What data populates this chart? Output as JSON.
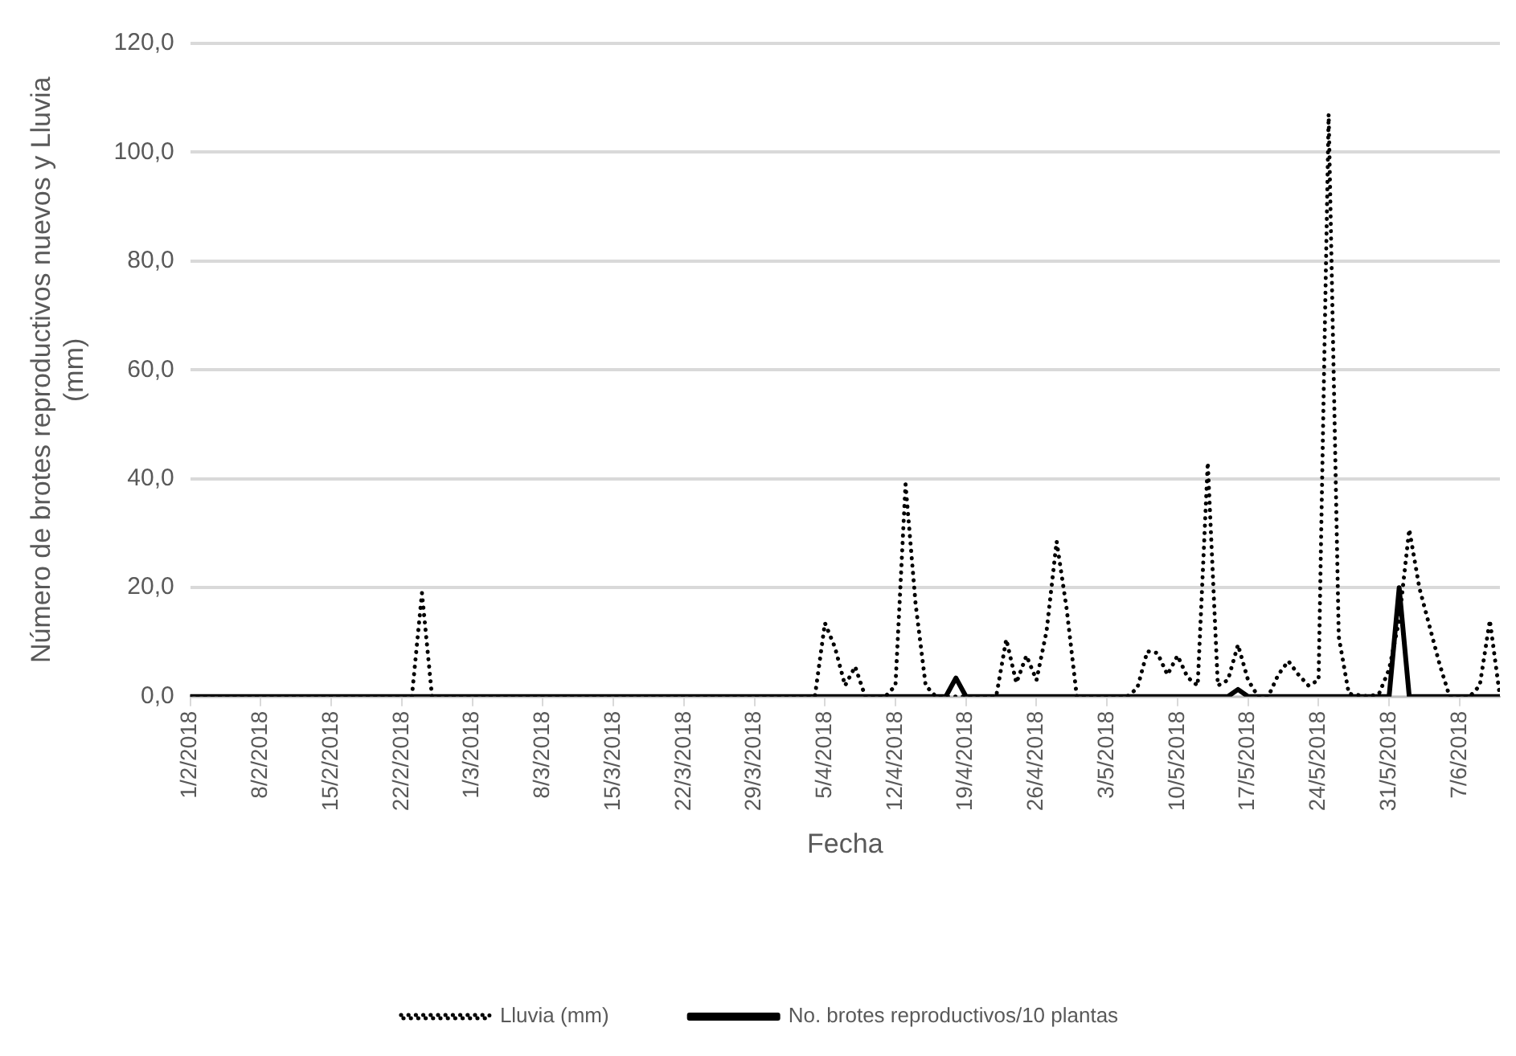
{
  "chart_data": {
    "type": "line",
    "xlabel": "Fecha",
    "ylabel": "Número de brotes reproductivos nuevos y Lluvia (mm)",
    "xlim": [
      "2018-02-01",
      "2018-06-11"
    ],
    "xticks": [
      {
        "value": "2018-02-01",
        "label": "1/2/2018"
      },
      {
        "value": "2018-02-08",
        "label": "8/2/2018"
      },
      {
        "value": "2018-02-15",
        "label": "15/2/2018"
      },
      {
        "value": "2018-02-22",
        "label": "22/2/2018"
      },
      {
        "value": "2018-03-01",
        "label": "1/3/2018"
      },
      {
        "value": "2018-03-08",
        "label": "8/3/2018"
      },
      {
        "value": "2018-03-15",
        "label": "15/3/2018"
      },
      {
        "value": "2018-03-22",
        "label": "22/3/2018"
      },
      {
        "value": "2018-03-29",
        "label": "29/3/2018"
      },
      {
        "value": "2018-04-05",
        "label": "5/4/2018"
      },
      {
        "value": "2018-04-12",
        "label": "12/4/2018"
      },
      {
        "value": "2018-04-19",
        "label": "19/4/2018"
      },
      {
        "value": "2018-04-26",
        "label": "26/4/2018"
      },
      {
        "value": "2018-05-03",
        "label": "3/5/2018"
      },
      {
        "value": "2018-05-10",
        "label": "10/5/2018"
      },
      {
        "value": "2018-05-17",
        "label": "17/5/2018"
      },
      {
        "value": "2018-05-24",
        "label": "24/5/2018"
      },
      {
        "value": "2018-05-31",
        "label": "31/5/2018"
      },
      {
        "value": "2018-06-07",
        "label": "7/6/2018"
      }
    ],
    "ylim": [
      0,
      120
    ],
    "yticks": [
      {
        "value": 0,
        "label": "0,0"
      },
      {
        "value": 20,
        "label": "20,0"
      },
      {
        "value": 40,
        "label": "40,0"
      },
      {
        "value": 60,
        "label": "60,0"
      },
      {
        "value": 80,
        "label": "80,0"
      },
      {
        "value": 100,
        "label": "100,0"
      },
      {
        "value": 120,
        "label": "120,0"
      }
    ],
    "grid": "y",
    "legend": "bottom",
    "marker": "none",
    "series": [
      {
        "name": "Lluvia (mm)",
        "color": "#000000",
        "line_style": "dotted",
        "x": [
          "2018-02-01",
          "2018-02-23",
          "2018-02-24",
          "2018-02-25",
          "2018-04-04",
          "2018-04-05",
          "2018-04-06",
          "2018-04-07",
          "2018-04-08",
          "2018-04-09",
          "2018-04-11",
          "2018-04-12",
          "2018-04-13",
          "2018-04-14",
          "2018-04-15",
          "2018-04-16",
          "2018-04-22",
          "2018-04-23",
          "2018-04-24",
          "2018-04-25",
          "2018-04-26",
          "2018-04-27",
          "2018-04-28",
          "2018-04-29",
          "2018-04-30",
          "2018-05-05",
          "2018-05-06",
          "2018-05-07",
          "2018-05-08",
          "2018-05-09",
          "2018-05-10",
          "2018-05-11",
          "2018-05-12",
          "2018-05-13",
          "2018-05-14",
          "2018-05-15",
          "2018-05-16",
          "2018-05-17",
          "2018-05-18",
          "2018-05-19",
          "2018-05-20",
          "2018-05-21",
          "2018-05-22",
          "2018-05-23",
          "2018-05-24",
          "2018-05-25",
          "2018-05-26",
          "2018-05-27",
          "2018-05-29",
          "2018-05-30",
          "2018-05-31",
          "2018-06-01",
          "2018-06-02",
          "2018-06-03",
          "2018-06-04",
          "2018-06-05",
          "2018-06-06",
          "2018-06-08",
          "2018-06-09",
          "2018-06-10",
          "2018-06-11"
        ],
        "values": [
          0,
          0,
          19,
          0,
          0,
          13.5,
          9,
          2,
          5.5,
          0,
          0,
          2,
          39,
          17,
          2,
          0,
          0,
          10.5,
          2.5,
          7.5,
          3,
          12,
          28.5,
          16,
          0,
          0,
          1.5,
          8.3,
          8,
          4,
          7.5,
          3.5,
          2,
          43,
          2,
          3,
          9.5,
          3,
          0,
          0,
          4,
          6.5,
          4,
          2,
          3,
          107,
          11,
          0.5,
          0,
          0.5,
          5,
          14,
          30.7,
          20,
          13,
          6,
          0,
          0,
          2,
          14,
          0
        ]
      },
      {
        "name": "No. brotes reproductivos/10 plantas",
        "color": "#000000",
        "line_style": "solid",
        "x": [
          "2018-02-01",
          "2018-04-17",
          "2018-04-18",
          "2018-04-19",
          "2018-05-15",
          "2018-05-16",
          "2018-05-17",
          "2018-05-31",
          "2018-06-01",
          "2018-06-02",
          "2018-06-11"
        ],
        "values": [
          0,
          0,
          3.4,
          0,
          0,
          1.3,
          0,
          0,
          20,
          0,
          0
        ]
      }
    ]
  }
}
